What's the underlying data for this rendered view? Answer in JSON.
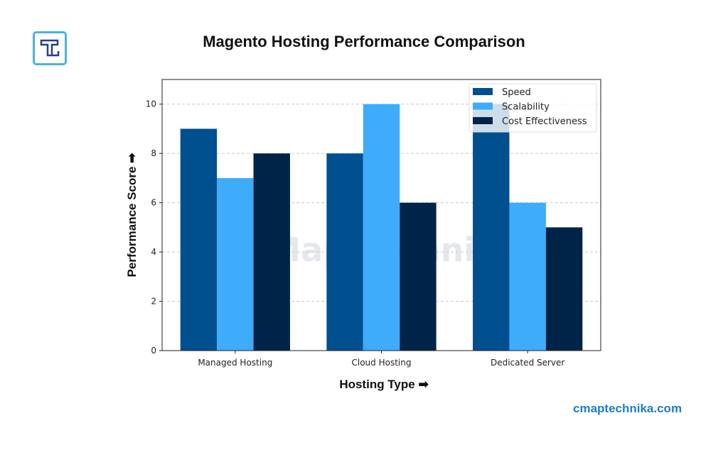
{
  "brand": {
    "logo_letter": "T",
    "site": "cmaptechnika.com",
    "watermark": "cMap Technika®"
  },
  "chart_data": {
    "type": "bar",
    "title": "Magento Hosting Performance Comparison",
    "xlabel": "Hosting Type ➡",
    "ylabel": "Performance Score ➡",
    "categories": [
      "Managed Hosting",
      "Cloud Hosting",
      "Dedicated Server"
    ],
    "series": [
      {
        "name": "Speed",
        "values": [
          9,
          8,
          10
        ],
        "color": "#004f8f"
      },
      {
        "name": "Scalability",
        "values": [
          7,
          10,
          6
        ],
        "color": "#3eacfa"
      },
      {
        "name": "Cost Effectiveness",
        "values": [
          8,
          6,
          5
        ],
        "color": "#002448"
      }
    ],
    "ylim": [
      0,
      11
    ],
    "yticks": [
      0,
      2,
      4,
      6,
      8,
      10
    ],
    "grid": "y-dashed",
    "legend": "top-right"
  }
}
